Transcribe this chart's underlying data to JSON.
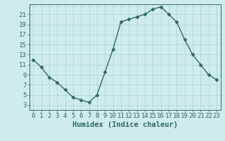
{
  "x": [
    0,
    1,
    2,
    3,
    4,
    5,
    6,
    7,
    8,
    9,
    10,
    11,
    12,
    13,
    14,
    15,
    16,
    17,
    18,
    19,
    20,
    21,
    22,
    23
  ],
  "y": [
    12,
    10.5,
    8.5,
    7.5,
    6,
    4.5,
    4,
    3.5,
    5,
    9.5,
    14,
    19.5,
    20,
    20.5,
    21,
    22,
    22.5,
    21,
    19.5,
    16,
    13,
    11,
    9,
    8
  ],
  "line_color": "#2e6b5e",
  "marker": "D",
  "marker_size": 2.5,
  "background_color": "#ceecea",
  "grid_color": "#aed8d4",
  "xlabel": "Humidex (Indice chaleur)",
  "ylim": [
    2,
    23
  ],
  "xlim": [
    -0.5,
    23.5
  ],
  "yticks": [
    3,
    5,
    7,
    9,
    11,
    13,
    15,
    17,
    19,
    21
  ],
  "xticks": [
    0,
    1,
    2,
    3,
    4,
    5,
    6,
    7,
    8,
    9,
    10,
    11,
    12,
    13,
    14,
    15,
    16,
    17,
    18,
    19,
    20,
    21,
    22,
    23
  ],
  "tick_label_fontsize": 6.5,
  "xlabel_fontsize": 7.5,
  "line_width": 1.0
}
